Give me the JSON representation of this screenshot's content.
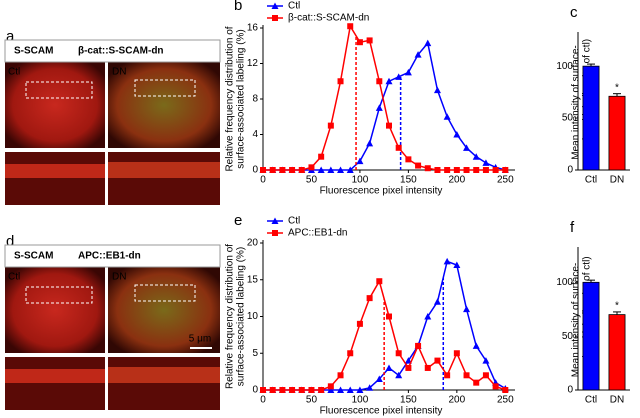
{
  "images": [
    {
      "panel": "a",
      "header": [
        "S-SCAM",
        "β-cat::S-SCAM-dn"
      ],
      "labels": [
        "Ctl",
        "DN"
      ]
    },
    {
      "panel": "d",
      "header": [
        "S-SCAM",
        "APC::EB1-dn"
      ],
      "labels": [
        "Ctl",
        "DN"
      ],
      "scale": "5 μm"
    }
  ],
  "chart_data": [
    {
      "type": "line",
      "panel": "b",
      "xlabel": "Fluorescence pixel intensity",
      "ylabel": [
        "Relative frequency distribution of",
        "surface-associated labeling (%)"
      ],
      "x": [
        0,
        10,
        20,
        30,
        40,
        50,
        60,
        70,
        80,
        90,
        100,
        110,
        120,
        130,
        140,
        150,
        160,
        170,
        180,
        190,
        200,
        210,
        220,
        230,
        240,
        250
      ],
      "series": [
        {
          "name": "Ctl",
          "color": "#0000ff",
          "marker": "triangle",
          "mean": 142,
          "values": [
            0,
            0,
            0,
            0,
            0,
            0,
            0,
            0,
            0,
            0,
            1,
            3,
            7,
            10,
            10.5,
            11,
            13,
            14.3,
            9,
            6,
            4,
            2.5,
            1.5,
            0.8,
            0.3,
            0
          ]
        },
        {
          "name": "β-cat::S-SCAM-dn",
          "color": "#ff0000",
          "marker": "square",
          "mean": 96,
          "values": [
            0,
            0,
            0,
            0,
            0,
            0.3,
            1.5,
            5,
            10,
            16.2,
            14.4,
            14.6,
            10,
            5,
            2.5,
            1.2,
            0.5,
            0.2,
            0,
            0,
            0,
            0,
            0,
            0,
            0,
            0
          ]
        }
      ],
      "xlim": [
        0,
        260
      ],
      "xticks": [
        0,
        50,
        100,
        150,
        200,
        250
      ],
      "ylim": [
        0,
        16
      ],
      "yticks": [
        0,
        4,
        8,
        12,
        16
      ]
    },
    {
      "type": "bar",
      "panel": "c",
      "ylabel": [
        "Mean intensity of surface-",
        "associated labeling (% of ctl)"
      ],
      "categories": [
        "Ctl",
        "DN"
      ],
      "values": [
        100,
        71
      ],
      "errors": [
        2,
        2.5
      ],
      "colors": [
        "#0000ff",
        "#ff0000"
      ],
      "significance": "*",
      "ylim": [
        0,
        130
      ],
      "yticks": [
        0,
        50,
        100
      ]
    },
    {
      "type": "line",
      "panel": "e",
      "xlabel": "Fluorescence pixel intensity",
      "ylabel": [
        "Relative frequency distribution of",
        "surface-associated labeling (%)"
      ],
      "x": [
        0,
        10,
        20,
        30,
        40,
        50,
        60,
        70,
        80,
        90,
        100,
        110,
        120,
        130,
        140,
        150,
        160,
        170,
        180,
        190,
        200,
        210,
        220,
        230,
        240,
        250
      ],
      "series": [
        {
          "name": "Ctl",
          "color": "#0000ff",
          "marker": "triangle",
          "mean": 186,
          "values": [
            0,
            0,
            0,
            0,
            0,
            0,
            0,
            0,
            0,
            0,
            0,
            0.3,
            1.5,
            3,
            2,
            4,
            6,
            10,
            12,
            17.5,
            17,
            11,
            6,
            4,
            1,
            0.2
          ]
        },
        {
          "name": "APC::EB1-dn",
          "color": "#ff0000",
          "marker": "square",
          "mean": 125,
          "values": [
            0,
            0,
            0,
            0,
            0,
            0,
            0,
            0.5,
            2,
            5,
            9,
            12.5,
            14.8,
            10,
            5,
            3,
            6,
            3,
            4,
            2,
            5,
            2,
            1,
            2,
            0.5,
            0
          ]
        }
      ],
      "xlim": [
        0,
        260
      ],
      "xticks": [
        0,
        50,
        100,
        150,
        200,
        250
      ],
      "ylim": [
        0,
        20
      ],
      "yticks": [
        0,
        5,
        10,
        15,
        20
      ]
    },
    {
      "type": "bar",
      "panel": "f",
      "ylabel": [
        "Mean intensity of surface-",
        "associated labeling (% of ctl)"
      ],
      "categories": [
        "Ctl",
        "DN"
      ],
      "values": [
        100,
        70
      ],
      "errors": [
        2,
        2.5
      ],
      "colors": [
        "#0000ff",
        "#ff0000"
      ],
      "significance": "*",
      "ylim": [
        0,
        130
      ],
      "yticks": [
        0,
        50,
        100
      ]
    }
  ]
}
